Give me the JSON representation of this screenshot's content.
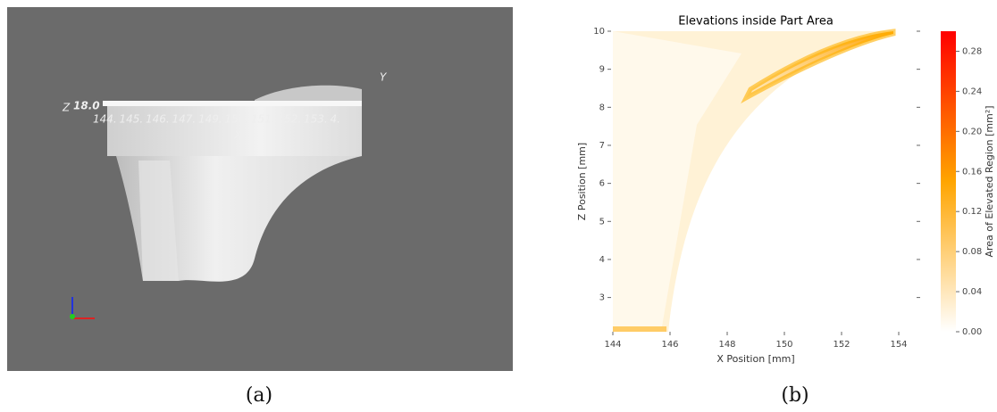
{
  "render": {
    "x_ticks": [
      "144.",
      "145.",
      "146.",
      "147.",
      "149.",
      "150.",
      "151.",
      "152.",
      "153.",
      "4."
    ],
    "z_label": "Z",
    "z_value": "18.0",
    "x_label": "X",
    "y_label": "Y"
  },
  "chart_data": {
    "type": "heatmap",
    "title": "Elevations inside Part Area",
    "xlabel": "X Position [mm]",
    "ylabel": "Z Position [mm]",
    "xlim": [
      144,
      154
    ],
    "xticks": [
      144,
      146,
      148,
      150,
      152,
      154
    ],
    "ylim": [
      2.1,
      10
    ],
    "yticks": [
      3,
      4,
      5,
      6,
      7,
      8,
      9,
      10
    ],
    "colorbar_label": "Area of Elevated Region [mm²]",
    "clim": [
      0,
      0.3
    ],
    "cticks": [
      {
        "value": 0,
        "label": "0.00"
      },
      {
        "value": 0.04,
        "label": "0.04"
      },
      {
        "value": 0.08,
        "label": "0.08"
      },
      {
        "value": 0.12,
        "label": "0.12"
      },
      {
        "value": 0.16,
        "label": "0.16"
      },
      {
        "value": 0.2,
        "label": "0.20"
      },
      {
        "value": 0.24,
        "label": "0.24"
      },
      {
        "value": 0.28,
        "label": "0.28"
      }
    ],
    "colormap": [
      "#ffffff",
      "#ffa500",
      "#ff0000"
    ]
  },
  "captions": [
    "(a)",
    "(b)"
  ]
}
